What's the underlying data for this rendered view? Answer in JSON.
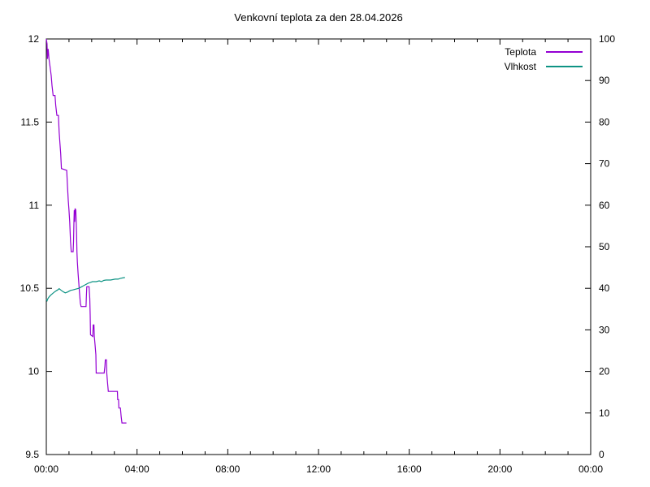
{
  "chart_data": {
    "type": "line",
    "title": "Venkovní teplota za den 28.04.2026",
    "background_color": "#ffffff",
    "axis_color": "#000000",
    "grid": false,
    "legend_position": "top-right-inside",
    "x_axis": {
      "unit": "time-of-day",
      "range_minutes": [
        0,
        1440
      ],
      "major_tick_minutes": 240,
      "minor_tick_minutes": 60,
      "tick_labels": [
        "00:00",
        "04:00",
        "08:00",
        "12:00",
        "16:00",
        "20:00",
        "00:00"
      ]
    },
    "y_axis_left": {
      "range": [
        9.5,
        12
      ],
      "tick_step": 0.5,
      "tick_labels": [
        "9.5",
        "10",
        "10.5",
        "11",
        "11.5",
        "12"
      ]
    },
    "y_axis_right": {
      "range": [
        0,
        100
      ],
      "tick_step": 10,
      "tick_labels": [
        "0",
        "10",
        "20",
        "30",
        "40",
        "50",
        "60",
        "70",
        "80",
        "90",
        "100"
      ]
    },
    "series": [
      {
        "name": "Teplota",
        "color": "#9400d3",
        "axis": "left",
        "points_unit": [
          "minutes",
          "celsius"
        ],
        "points": [
          [
            0,
            12.0
          ],
          [
            2,
            11.97
          ],
          [
            3,
            11.88
          ],
          [
            5,
            11.94
          ],
          [
            7,
            11.88
          ],
          [
            10,
            11.83
          ],
          [
            13,
            11.78
          ],
          [
            15,
            11.72
          ],
          [
            18,
            11.66
          ],
          [
            23,
            11.66
          ],
          [
            25,
            11.6
          ],
          [
            28,
            11.54
          ],
          [
            32,
            11.54
          ],
          [
            34,
            11.44
          ],
          [
            36,
            11.37
          ],
          [
            38,
            11.31
          ],
          [
            40,
            11.22
          ],
          [
            54,
            11.21
          ],
          [
            56,
            11.11
          ],
          [
            58,
            11.03
          ],
          [
            60,
            10.97
          ],
          [
            62,
            10.9
          ],
          [
            64,
            10.78
          ],
          [
            66,
            10.72
          ],
          [
            71,
            10.72
          ],
          [
            72,
            10.78
          ],
          [
            73,
            10.9
          ],
          [
            74,
            10.97
          ],
          [
            75,
            10.9
          ],
          [
            76,
            10.98
          ],
          [
            78,
            10.97
          ],
          [
            80,
            10.84
          ],
          [
            81,
            10.72
          ],
          [
            82,
            10.66
          ],
          [
            84,
            10.59
          ],
          [
            86,
            10.53
          ],
          [
            88,
            10.47
          ],
          [
            90,
            10.41
          ],
          [
            92,
            10.39
          ],
          [
            105,
            10.39
          ],
          [
            106,
            10.45
          ],
          [
            107,
            10.51
          ],
          [
            113,
            10.51
          ],
          [
            115,
            10.44
          ],
          [
            116,
            10.34
          ],
          [
            117,
            10.22
          ],
          [
            123,
            10.21
          ],
          [
            124,
            10.28
          ],
          [
            126,
            10.28
          ],
          [
            127,
            10.21
          ],
          [
            129,
            10.16
          ],
          [
            131,
            10.1
          ],
          [
            132,
            9.99
          ],
          [
            153,
            9.99
          ],
          [
            155,
            10.03
          ],
          [
            156,
            10.07
          ],
          [
            159,
            10.07
          ],
          [
            160,
            9.99
          ],
          [
            162,
            9.93
          ],
          [
            164,
            9.88
          ],
          [
            188,
            9.88
          ],
          [
            189,
            9.83
          ],
          [
            191,
            9.83
          ],
          [
            192,
            9.78
          ],
          [
            196,
            9.78
          ],
          [
            198,
            9.73
          ],
          [
            200,
            9.69
          ],
          [
            212,
            9.69
          ]
        ]
      },
      {
        "name": "Vlhkost",
        "color": "#0e9384",
        "axis": "right",
        "points_unit": [
          "minutes",
          "percent"
        ],
        "points": [
          [
            0,
            37.3
          ],
          [
            2,
            37.0
          ],
          [
            4,
            37.5
          ],
          [
            8,
            38.0
          ],
          [
            12,
            38.4
          ],
          [
            16,
            38.7
          ],
          [
            20,
            39.0
          ],
          [
            26,
            39.4
          ],
          [
            30,
            39.6
          ],
          [
            34,
            39.9
          ],
          [
            38,
            39.6
          ],
          [
            44,
            39.2
          ],
          [
            50,
            38.9
          ],
          [
            56,
            39.1
          ],
          [
            60,
            39.3
          ],
          [
            64,
            39.5
          ],
          [
            70,
            39.6
          ],
          [
            78,
            39.8
          ],
          [
            86,
            40.0
          ],
          [
            92,
            40.3
          ],
          [
            98,
            40.6
          ],
          [
            104,
            40.9
          ],
          [
            110,
            41.2
          ],
          [
            116,
            41.4
          ],
          [
            122,
            41.6
          ],
          [
            132,
            41.6
          ],
          [
            140,
            41.8
          ],
          [
            146,
            41.6
          ],
          [
            152,
            41.9
          ],
          [
            158,
            42.0
          ],
          [
            170,
            42.0
          ],
          [
            182,
            42.2
          ],
          [
            190,
            42.2
          ],
          [
            196,
            42.4
          ],
          [
            202,
            42.5
          ],
          [
            208,
            42.6
          ]
        ]
      }
    ]
  }
}
